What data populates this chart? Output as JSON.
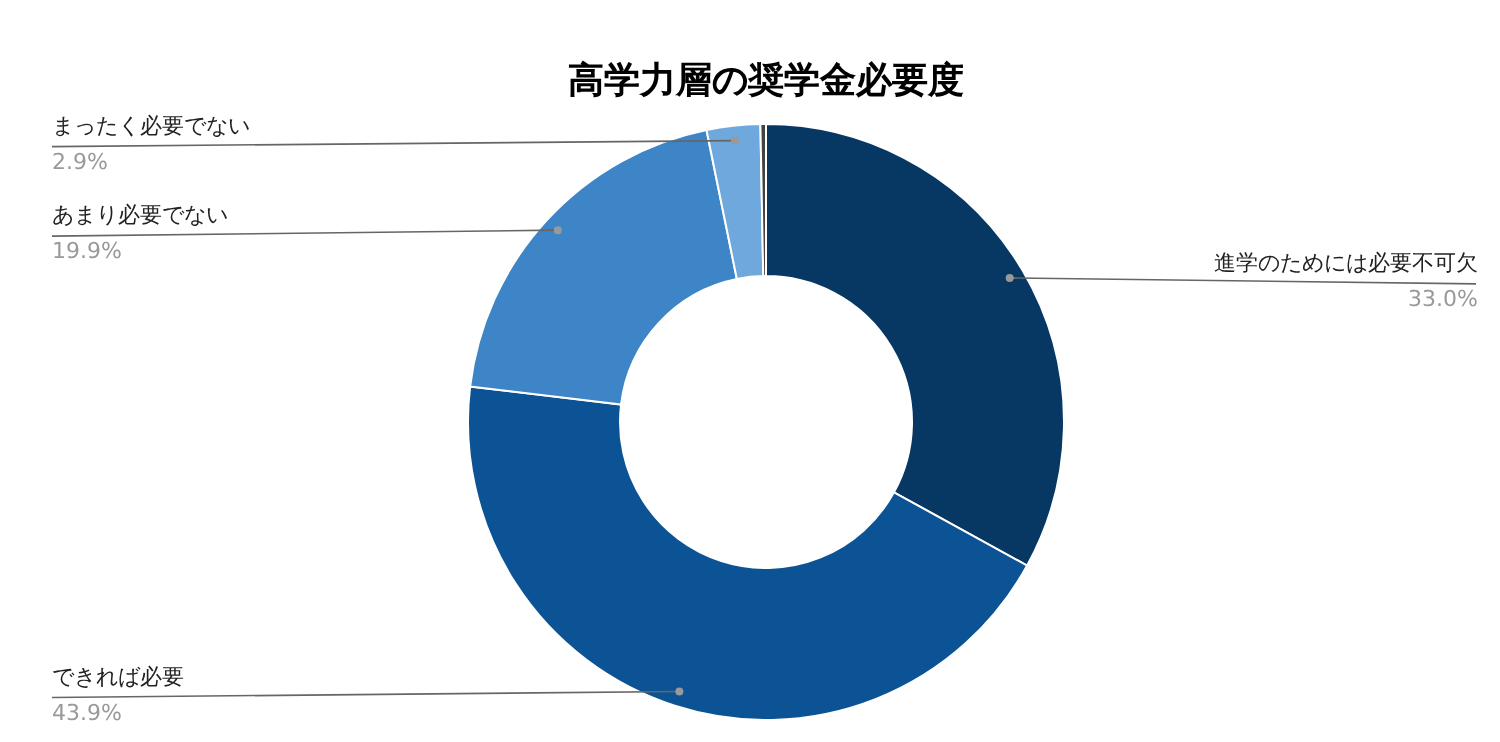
{
  "chart_data": {
    "type": "donut",
    "title": "高学力層の奨学金必要度",
    "categories": [
      "進学のためには必要不可欠",
      "できれば必要",
      "あまり必要でない",
      "まったく必要でない",
      null
    ],
    "values": [
      33.0,
      43.9,
      19.9,
      2.9,
      0.3
    ],
    "colors": [
      "#073763",
      "#0b5394",
      "#3d85c6",
      "#6fa8dc",
      "#434343"
    ],
    "value_labels": [
      "33.0%",
      "43.9%",
      "19.9%",
      "2.9%",
      null
    ]
  }
}
